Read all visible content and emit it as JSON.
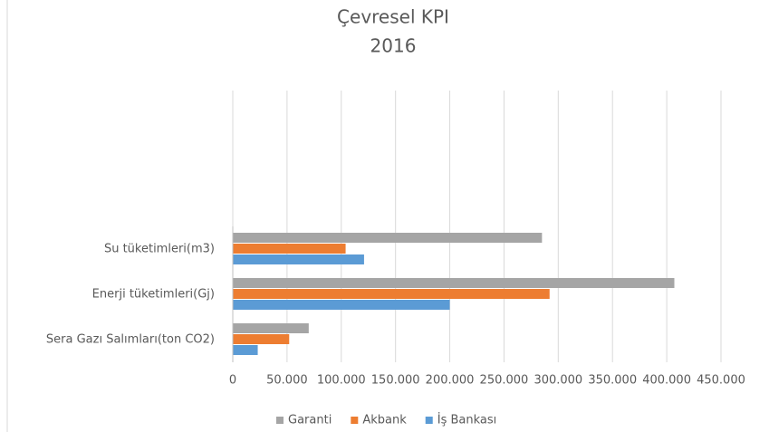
{
  "chart_data": {
    "type": "bar",
    "orientation": "horizontal",
    "title": "Çevresel KPI",
    "subtitle": "2016",
    "categories": [
      "Sera Gazı Salımları(ton CO2)",
      "Enerji tüketimleri(Gj)",
      "Su tüketimleri(m3)",
      null,
      null,
      null
    ],
    "series": [
      {
        "name": "Garanti",
        "color": "#a5a5a5",
        "values": [
          70000,
          407000,
          285000,
          null,
          null,
          null
        ]
      },
      {
        "name": "Akbank",
        "color": "#ed7d31",
        "values": [
          52000,
          292000,
          104000,
          null,
          null,
          null
        ]
      },
      {
        "name": "İş Bankası",
        "color": "#5b9bd5",
        "values": [
          23000,
          200000,
          121000,
          null,
          null,
          null
        ]
      }
    ],
    "xlim": [
      0,
      450000
    ],
    "xticks": [
      0,
      {
        "value": 50000,
        "label": "50.000"
      },
      {
        "value": 100000,
        "label": "100.000"
      },
      {
        "value": 150000,
        "label": "150.000"
      },
      {
        "value": 200000,
        "label": "200.000"
      },
      {
        "value": 250000,
        "label": "250.000"
      },
      {
        "value": 300000,
        "label": "300.000"
      },
      {
        "value": 350000,
        "label": "350.000"
      },
      {
        "value": 400000,
        "label": "400.000"
      },
      {
        "value": 450000,
        "label": "450.000"
      }
    ],
    "grid": true,
    "legend": "bottom"
  }
}
